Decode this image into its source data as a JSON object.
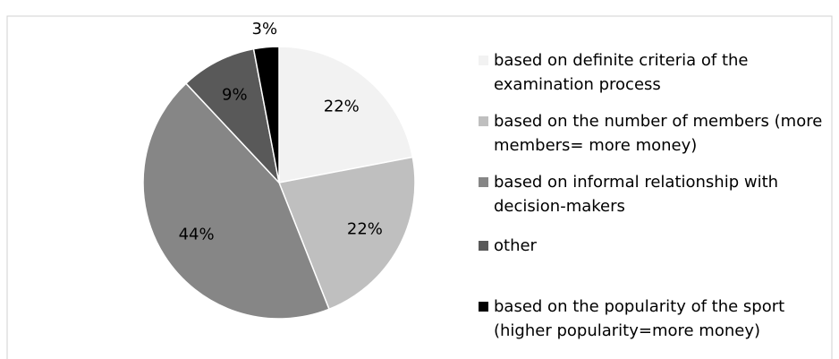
{
  "chart_data": {
    "type": "pie",
    "categories": [
      "based on definite criteria of the examination process",
      "based on the number of members (more members= more money)",
      "based on informal relationship with decision-makers",
      "other",
      "based on the popularity of the sport (higher popularity=more money)"
    ],
    "values": [
      22,
      22,
      44,
      9,
      3
    ],
    "value_labels": [
      "22%",
      "22%",
      "44%",
      "9%",
      "3%"
    ],
    "colors": [
      "#f2f2f2",
      "#bfbfbf",
      "#868686",
      "#595959",
      "#000000"
    ],
    "legend": "right"
  }
}
